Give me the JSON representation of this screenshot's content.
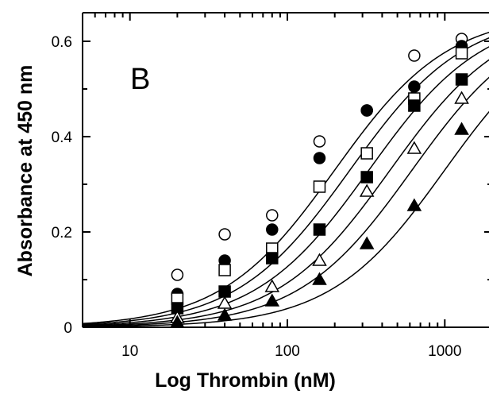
{
  "chart_data": {
    "type": "scatter",
    "panel_label": "B",
    "xlabel": "Log Thrombin (nM)",
    "ylabel": "Absorbance at 450 nm",
    "xscale": "log",
    "xlim": [
      5,
      2000
    ],
    "ylim": [
      0,
      0.66
    ],
    "x_ticks": [
      10,
      100,
      1000
    ],
    "x_tick_labels": [
      "10",
      "100",
      "1000"
    ],
    "y_ticks": [
      0,
      0.2,
      0.4,
      0.6
    ],
    "y_tick_labels": [
      "0",
      "0.2",
      "0.4",
      "0.6"
    ],
    "x": [
      20,
      40,
      80,
      160,
      320,
      640,
      1280
    ],
    "series": [
      {
        "marker": "open-circle",
        "values": [
          0.11,
          0.195,
          0.235,
          0.39,
          0.455,
          0.57,
          0.605
        ],
        "fit_ec50": 200
      },
      {
        "marker": "filled-circle",
        "values": [
          0.07,
          0.14,
          0.205,
          0.355,
          0.455,
          0.505,
          0.59
        ],
        "fit_ec50": 250
      },
      {
        "marker": "open-square",
        "values": [
          0.06,
          0.12,
          0.165,
          0.295,
          0.365,
          0.48,
          0.575
        ],
        "fit_ec50": 330
      },
      {
        "marker": "filled-square",
        "values": [
          0.04,
          0.075,
          0.145,
          0.205,
          0.315,
          0.465,
          0.52
        ],
        "fit_ec50": 450
      },
      {
        "marker": "open-triangle",
        "values": [
          0.02,
          0.05,
          0.085,
          0.14,
          0.285,
          0.375,
          0.48
        ],
        "fit_ec50": 620
      },
      {
        "marker": "filled-triangle",
        "values": [
          0.01,
          0.025,
          0.055,
          0.1,
          0.175,
          0.255,
          0.415
        ],
        "fit_ec50": 1000
      }
    ],
    "fit_curve": {
      "top": 0.66,
      "hill": 1.2
    },
    "grid": false,
    "legend": "none"
  }
}
